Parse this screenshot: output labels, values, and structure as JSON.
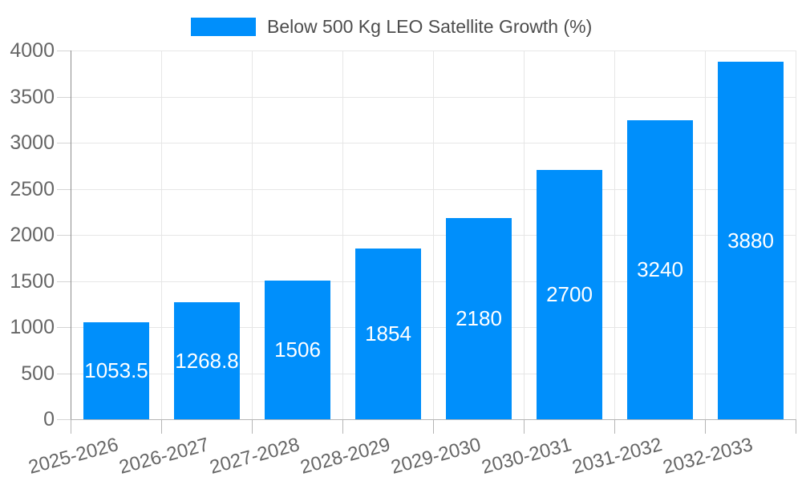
{
  "chart_data": {
    "type": "bar",
    "title": "Below 500 Kg LEO Satellite Growth (%)",
    "categories": [
      "2025-2026",
      "2026-2027",
      "2027-2028",
      "2028-2029",
      "2029-2030",
      "2030-2031",
      "2031-2032",
      "2032-2033"
    ],
    "values": [
      1053.5,
      1268.8,
      1506,
      1854,
      2180,
      2700,
      3240,
      3880
    ],
    "value_labels": [
      "1053.5",
      "1268.8",
      "1506",
      "1854",
      "2180",
      "2700",
      "3240",
      "3880"
    ],
    "xlabel": "",
    "ylabel": "",
    "ylim": [
      0,
      4000
    ],
    "yticks": [
      0,
      500,
      1000,
      1500,
      2000,
      2500,
      3000,
      3500,
      4000
    ],
    "grid": true,
    "legend_position": "top",
    "colors": {
      "bar": "#008FFB",
      "grid": "#e6e6e6",
      "y_axis_line": "#8c8c8c",
      "baseline": "#b5b5b5",
      "axis_text": "#666666",
      "legend_text": "#4d4d4d",
      "value_text": "#ffffff",
      "background": "#ffffff"
    }
  }
}
